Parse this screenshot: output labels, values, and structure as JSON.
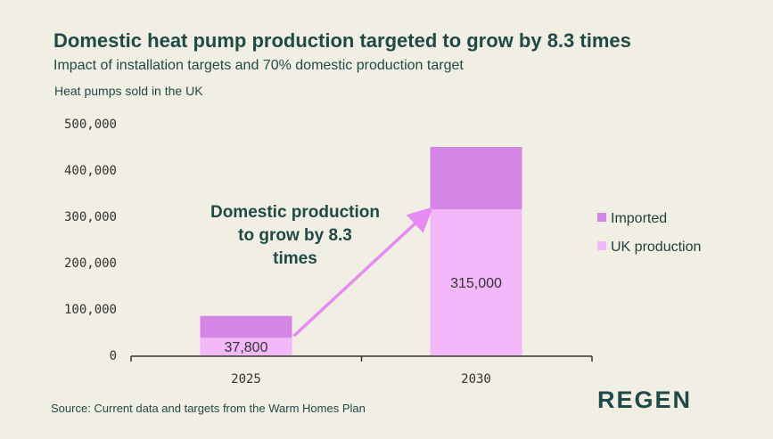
{
  "header": {
    "title": "Domestic heat pump production targeted to grow by 8.3 times",
    "subtitle": "Impact of installation targets and 70% domestic production target"
  },
  "footer": {
    "source": "Source: Current data and targets from the Warm Homes Plan",
    "logo": "REGEN"
  },
  "colors": {
    "imported": "#d585e3",
    "uk_production": "#f2b8fa",
    "arrow": "#e68bf2",
    "text_dark": "#1f4a47",
    "background": "#f1eee3"
  },
  "chart_data": {
    "type": "bar",
    "stacked": true,
    "title": "Domestic heat pump production targeted to grow by 8.3 times",
    "subtitle": "Impact of installation targets and 70% domestic production target",
    "ylabel": "Heat pumps sold in the UK",
    "xlabel": "",
    "categories": [
      "2025",
      "2030"
    ],
    "ylim": [
      0,
      500000
    ],
    "yticks": [
      0,
      100000,
      200000,
      300000,
      400000,
      500000
    ],
    "ytick_labels": [
      "0",
      "100,000",
      "200,000",
      "300,000",
      "400,000",
      "500,000"
    ],
    "series": [
      {
        "name": "UK production",
        "values": [
          37800,
          315000
        ],
        "labels": [
          "37,800",
          "315,000"
        ]
      },
      {
        "name": "Imported",
        "values": [
          47200,
          135000
        ]
      }
    ],
    "legend": {
      "position": "right",
      "entries": [
        "Imported",
        "UK production"
      ]
    },
    "annotation": {
      "lines": [
        "Domestic production",
        "to grow by 8.3",
        "times"
      ],
      "arrow_from": {
        "category": "2025",
        "value": 37800
      },
      "arrow_to": {
        "category": "2030",
        "value": 315000
      }
    },
    "grid": false
  }
}
